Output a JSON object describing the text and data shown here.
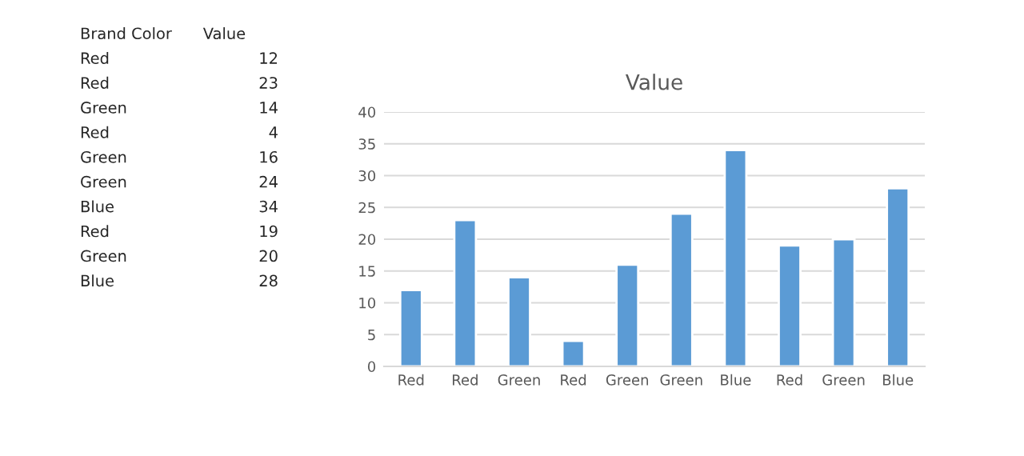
{
  "chart_data": [
    {
      "type": "other",
      "annotations": [
        "Brand Color",
        "Value",
        "Red",
        "12",
        "Red",
        "23",
        "Green",
        "14",
        "Red",
        "4",
        "Green",
        "16",
        "Green",
        "24",
        "Blue",
        "34",
        "Red",
        "19",
        "Green",
        "20",
        "Blue",
        "28"
      ]
    },
    {
      "type": "bar",
      "title": "Value",
      "categories": [
        "Red",
        "Red",
        "Green",
        "Red",
        "Green",
        "Green",
        "Blue",
        "Red",
        "Green",
        "Blue"
      ],
      "values": [
        12,
        23,
        14,
        4,
        16,
        24,
        34,
        19,
        20,
        28
      ],
      "color": "#5b9bd5",
      "ylim": [
        0,
        40
      ],
      "yticks": [
        0,
        5,
        10,
        15,
        20,
        25,
        30,
        35,
        40
      ],
      "grid": "y"
    }
  ]
}
